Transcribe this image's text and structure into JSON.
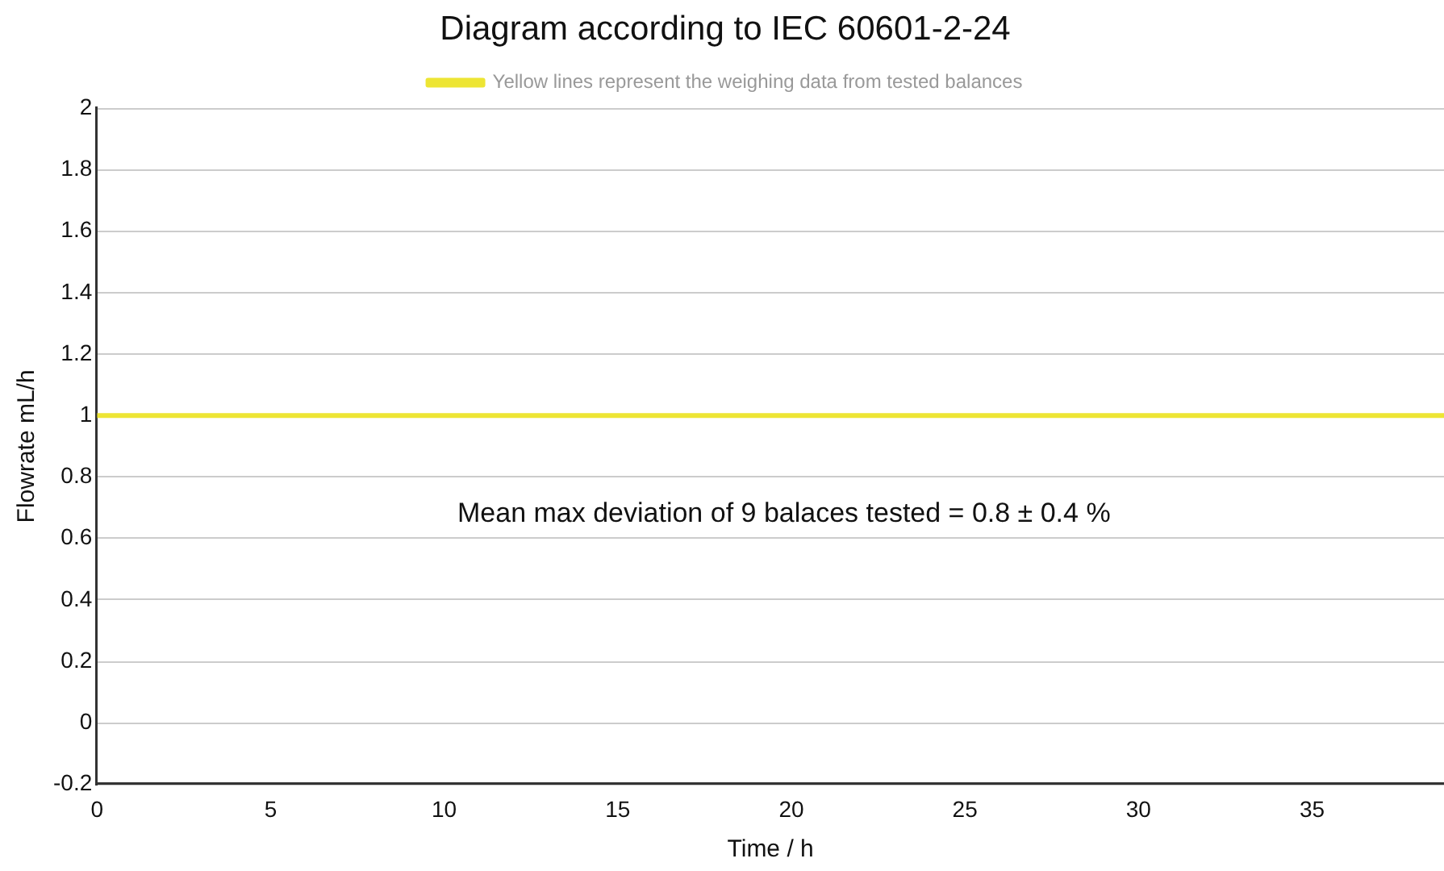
{
  "chart_data": {
    "type": "line",
    "title": "Diagram according to IEC 60601-2-24",
    "xlabel": "Time / h",
    "ylabel": "Flowrate mL/h",
    "x": [
      0,
      38.8
    ],
    "series": [
      {
        "name": "Yellow lines represent the weighing data from tested balances",
        "color": "#ede534",
        "values": [
          1,
          1
        ]
      }
    ],
    "xlim": [
      0,
      38.8
    ],
    "xticks": [
      0,
      5,
      10,
      15,
      20,
      25,
      30,
      35
    ],
    "ylim": [
      -0.2,
      2
    ],
    "yticks": [
      -0.2,
      0,
      0.2,
      0.4,
      0.6,
      0.8,
      1,
      1.2,
      1.4,
      1.6,
      1.8,
      2
    ],
    "grid": "y",
    "legend": "top",
    "marker": "none",
    "line_style": "solid",
    "annotations": [
      "Mean max deviation of 9 balaces tested = 0.8 ± 0.4 %"
    ]
  }
}
